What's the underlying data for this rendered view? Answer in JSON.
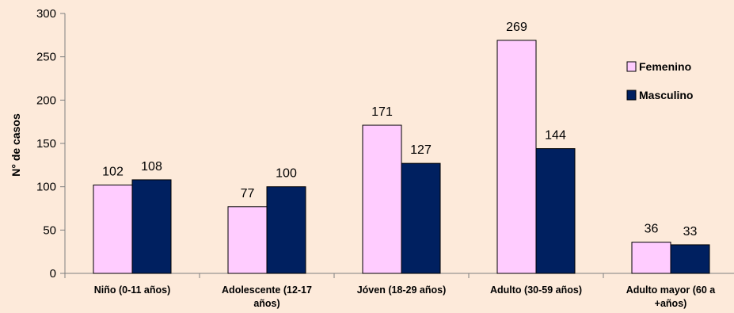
{
  "chart_data": {
    "type": "bar",
    "ylabel": "N° de casos",
    "xlabel": "",
    "ylim": [
      0,
      300
    ],
    "yticks": [
      0,
      50,
      100,
      150,
      200,
      250,
      300
    ],
    "grid": false,
    "legend_position": "right",
    "categories": [
      [
        "Niño (0-11 años)"
      ],
      [
        "Adolescente (12-17",
        "años)"
      ],
      [
        "Jóven (18-29 años)"
      ],
      [
        "Adulto (30-59 años)"
      ],
      [
        "Adulto mayor (60 a",
        "+años)"
      ]
    ],
    "series": [
      {
        "name": "Femenino",
        "color": "#ffccff",
        "values": [
          102,
          77,
          171,
          269,
          36
        ]
      },
      {
        "name": "Masculino",
        "color": "#002060",
        "values": [
          108,
          100,
          127,
          144,
          33
        ]
      }
    ]
  }
}
